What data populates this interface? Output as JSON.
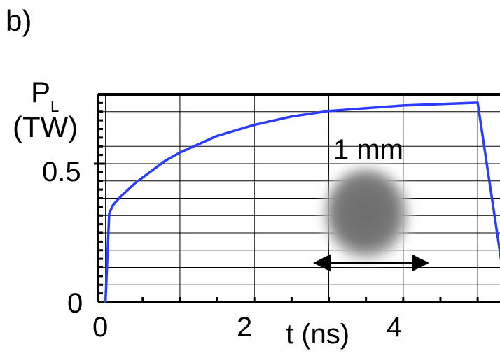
{
  "panel_label": "b)",
  "chart_data": {
    "type": "line",
    "ylabel_main": "P",
    "ylabel_sub": "L",
    "ylabel_unit": "(TW)",
    "xlabel": "t (ns)",
    "x_ticks": [
      "0",
      "2",
      "4"
    ],
    "y_ticks": [
      "0",
      "0.5"
    ],
    "xlim": [
      -0.1,
      5.3
    ],
    "ylim": [
      0,
      0.75
    ],
    "grid": true,
    "line_color": "#2a3cff",
    "series": [
      {
        "x": [
          0,
          0.05,
          0.1,
          0.2,
          0.4,
          0.6,
          0.8,
          1.0,
          1.5,
          2.0,
          2.5,
          3.0,
          3.5,
          4.0,
          4.5,
          5.0,
          5.4
        ],
        "y": [
          0,
          0.32,
          0.35,
          0.38,
          0.43,
          0.47,
          0.51,
          0.54,
          0.6,
          0.64,
          0.67,
          0.69,
          0.7,
          0.71,
          0.715,
          0.72,
          0
        ]
      }
    ]
  },
  "inset": {
    "scale_label": "1 mm"
  }
}
